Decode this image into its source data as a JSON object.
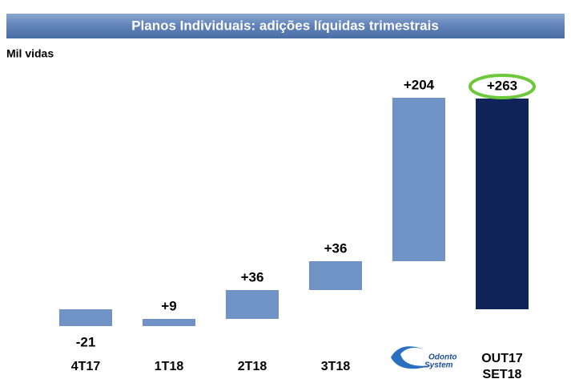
{
  "chart_data": {
    "type": "waterfall",
    "title": "Planos Individuais: adições líquidas trimestrais",
    "subtitle": "Mil vidas",
    "categories": [
      "4T17",
      "1T18",
      "2T18",
      "3T18",
      null,
      "OUT17\nSET18"
    ],
    "logo": {
      "line1": "Odonto",
      "line2": "System"
    },
    "values": [
      -21,
      9,
      36,
      36,
      204,
      263
    ],
    "value_labels": [
      "-21",
      "+9",
      "+36",
      "+36",
      "+204",
      "+263"
    ],
    "color": "#6f93c4",
    "total_color": "#10245a",
    "highlight_color": "#6cc93a",
    "ylim": [
      -44,
      286
    ]
  }
}
